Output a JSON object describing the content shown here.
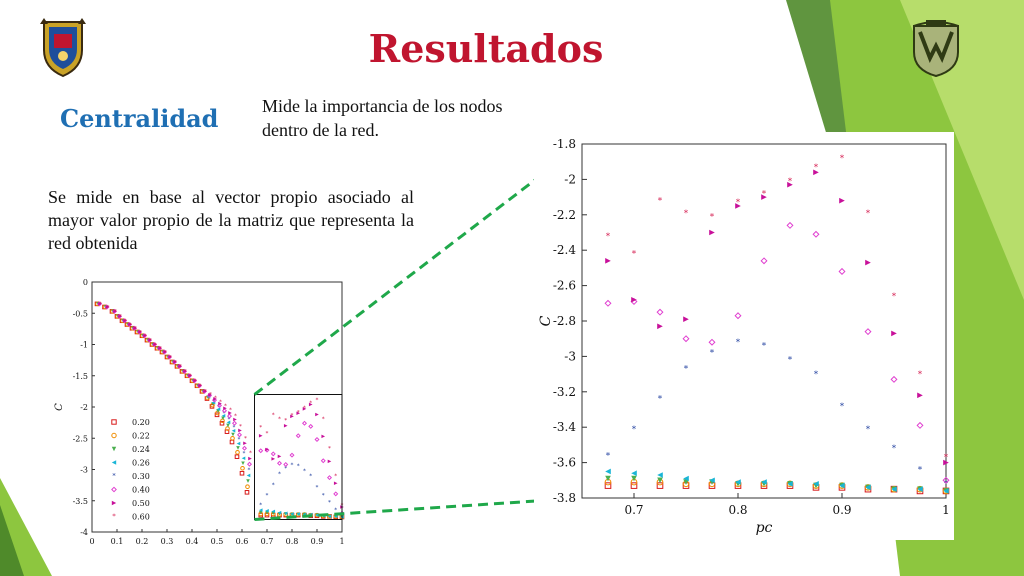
{
  "slide": {
    "title": "Resultados",
    "subtitle": "Centralidad",
    "note": "Mide la importancia de los nodos dentro de la red.",
    "body": "Se mide en base al vector propio asociado al mayor valor propio de la matriz que representa la red obtenida",
    "logo_left_icon": "university-crest-icon",
    "logo_right_icon": "unam-crest-icon",
    "colors": {
      "title": "#c0152f",
      "subtitle": "#1f6fb3",
      "green_decor": "#8dc63f",
      "zoom_lines": "#1fa84a"
    }
  },
  "chart_data": [
    {
      "type": "scatter",
      "title": "",
      "xlabel": "",
      "ylabel": "C",
      "xlim": [
        0,
        1
      ],
      "ylim": [
        -4,
        0
      ],
      "xticks": [
        "0",
        "0.1",
        "0.2",
        "0.3",
        "0.4",
        "0.5",
        "0.6",
        "0.7",
        "0.8",
        "0.9",
        "1"
      ],
      "yticks": [
        "0",
        "-0.5",
        "-1",
        "-1.5",
        "-2",
        "-2.5",
        "-3",
        "-3.5",
        "-4"
      ],
      "legend_position": "bottom-left",
      "series": [
        {
          "name": "0.20",
          "color": "#d81b1b",
          "marker": "square"
        },
        {
          "name": "0.22",
          "color": "#f08c00",
          "marker": "circle"
        },
        {
          "name": "0.24",
          "color": "#4caf50",
          "marker": "triangle-down"
        },
        {
          "name": "0.26",
          "color": "#19b5d6",
          "marker": "triangle-left"
        },
        {
          "name": "0.30",
          "color": "#1a3a9c",
          "marker": "star"
        },
        {
          "name": "0.40",
          "color": "#e040d0",
          "marker": "diamond"
        },
        {
          "name": "0.50",
          "color": "#c8109a",
          "marker": "triangle-right"
        },
        {
          "name": "0.60",
          "color": "#d3154a",
          "marker": "star"
        }
      ],
      "common_curve": {
        "x": [
          0.02,
          0.05,
          0.08,
          0.1,
          0.12,
          0.14,
          0.16,
          0.18,
          0.2,
          0.22,
          0.24,
          0.26,
          0.28,
          0.3,
          0.32,
          0.34,
          0.36,
          0.38,
          0.4,
          0.42,
          0.44,
          0.46,
          0.48,
          0.5,
          0.52,
          0.54,
          0.56,
          0.58,
          0.6,
          0.62
        ],
        "y": [
          -0.35,
          -0.4,
          -0.47,
          -0.55,
          -0.62,
          -0.68,
          -0.74,
          -0.8,
          -0.86,
          -0.93,
          -1.0,
          -1.06,
          -1.12,
          -1.2,
          -1.28,
          -1.35,
          -1.43,
          -1.5,
          -1.58,
          -1.66,
          -1.75,
          -1.83,
          -1.92,
          -2.02,
          -2.12,
          -2.22,
          -2.35,
          -2.55,
          -2.78,
          -3.05
        ]
      }
    },
    {
      "type": "scatter",
      "title": "",
      "xlabel": "p_c",
      "ylabel": "C",
      "xlim": [
        0.65,
        1
      ],
      "ylim": [
        -3.8,
        -1.8
      ],
      "xticks": [
        "0.7",
        "0.8",
        "0.9",
        "1"
      ],
      "yticks": [
        "-1.8",
        "-2",
        "-2.2",
        "-2.4",
        "-2.6",
        "-2.8",
        "-3",
        "-3.2",
        "-3.4",
        "-3.6",
        "-3.8"
      ],
      "x": [
        0.675,
        0.7,
        0.725,
        0.75,
        0.775,
        0.8,
        0.825,
        0.85,
        0.875,
        0.9,
        0.925,
        0.95,
        0.975,
        1.0
      ],
      "series": [
        {
          "name": "0.20",
          "color": "#d81b1b",
          "marker": "square",
          "values": [
            -3.73,
            -3.73,
            -3.73,
            -3.73,
            -3.73,
            -3.73,
            -3.73,
            -3.73,
            -3.74,
            -3.74,
            -3.75,
            -3.75,
            -3.76,
            -3.76
          ]
        },
        {
          "name": "0.22",
          "color": "#f08c00",
          "marker": "circle",
          "values": [
            -3.71,
            -3.71,
            -3.71,
            -3.72,
            -3.72,
            -3.72,
            -3.72,
            -3.72,
            -3.73,
            -3.73,
            -3.74,
            -3.75,
            -3.75,
            -3.76
          ]
        },
        {
          "name": "0.24",
          "color": "#4caf50",
          "marker": "triangle-down",
          "values": [
            -3.69,
            -3.69,
            -3.7,
            -3.71,
            -3.71,
            -3.72,
            -3.72,
            -3.72,
            -3.73,
            -3.73,
            -3.74,
            -3.75,
            -3.75,
            -3.76
          ]
        },
        {
          "name": "0.26",
          "color": "#19b5d6",
          "marker": "triangle-left",
          "values": [
            -3.65,
            -3.66,
            -3.67,
            -3.69,
            -3.7,
            -3.71,
            -3.71,
            -3.72,
            -3.72,
            -3.73,
            -3.74,
            -3.75,
            -3.75,
            -3.76
          ]
        },
        {
          "name": "0.30",
          "color": "#1a3a9c",
          "marker": "star",
          "values": [
            -3.56,
            -3.41,
            -3.24,
            -3.07,
            -2.98,
            -2.92,
            -2.94,
            -3.02,
            -3.1,
            -3.28,
            -3.41,
            -3.52,
            -3.64,
            -3.72
          ]
        },
        {
          "name": "0.40",
          "color": "#e040d0",
          "marker": "diamond",
          "values": [
            -2.7,
            -2.69,
            -2.75,
            -2.9,
            -2.92,
            -2.77,
            -2.46,
            -2.26,
            -2.31,
            -2.52,
            -2.86,
            -3.13,
            -3.39,
            -3.7
          ]
        },
        {
          "name": "0.50",
          "color": "#c8109a",
          "marker": "triangle-right",
          "values": [
            -2.46,
            -2.68,
            -2.83,
            -2.79,
            -2.3,
            -2.15,
            -2.1,
            -2.03,
            -1.96,
            -2.12,
            -2.47,
            -2.87,
            -3.22,
            -3.6
          ]
        },
        {
          "name": "0.60",
          "color": "#d3154a",
          "marker": "star",
          "values": [
            -2.32,
            -2.42,
            -2.12,
            -2.19,
            -2.21,
            -2.13,
            -2.08,
            -2.01,
            -1.93,
            -1.88,
            -2.19,
            -2.66,
            -3.1,
            -3.57
          ]
        }
      ]
    }
  ]
}
